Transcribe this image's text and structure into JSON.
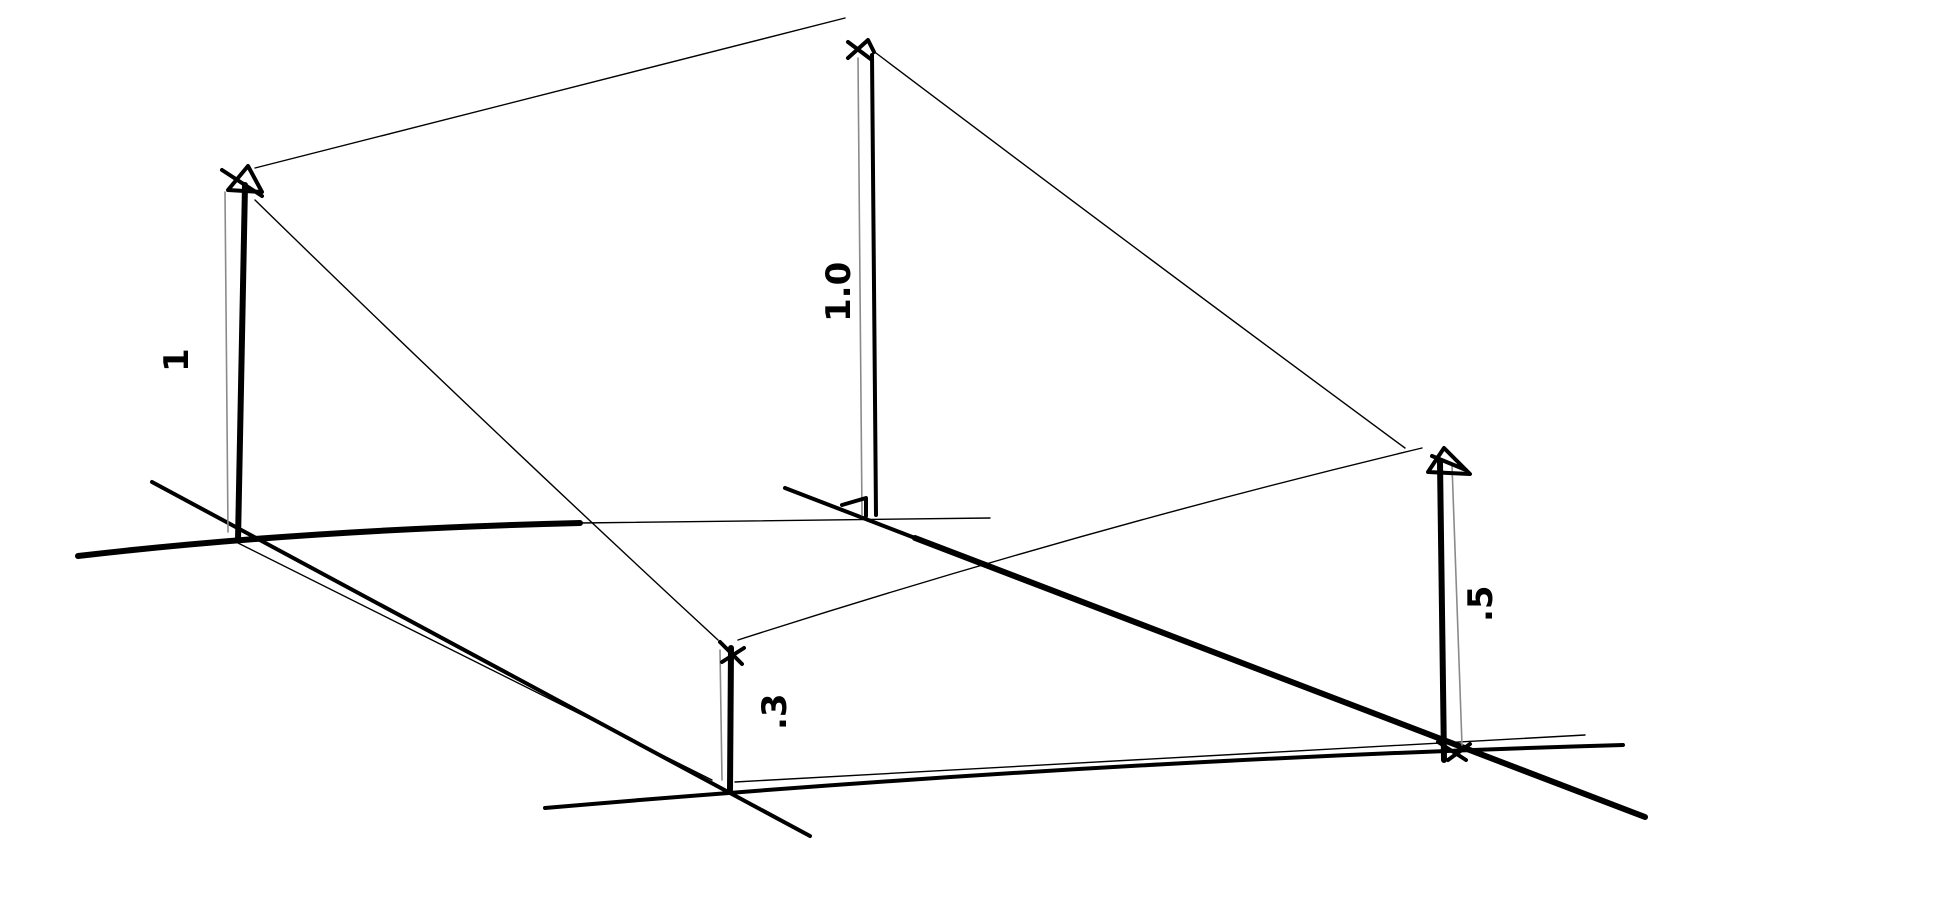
{
  "posts": [
    {
      "id": "back-left",
      "label": "1"
    },
    {
      "id": "back-right",
      "label": "1.0"
    },
    {
      "id": "front-left",
      "label": ".3"
    },
    {
      "id": "front-right",
      "label": ".5"
    }
  ],
  "colors": {
    "ink": "#000000",
    "ghost": "#8a8a8a",
    "paper": "#ffffff"
  }
}
